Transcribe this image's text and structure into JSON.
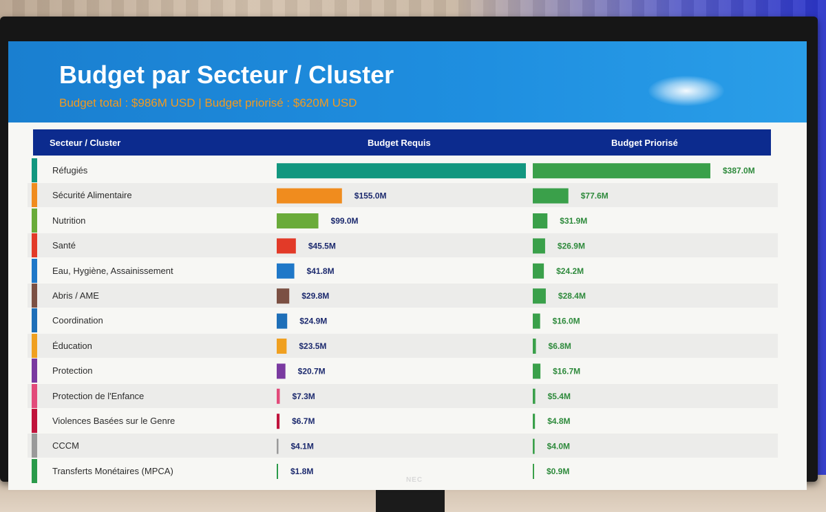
{
  "slide": {
    "title": "Budget par Secteur / Cluster",
    "subtitle": "Budget total : $986M USD  |  Budget priorisé : $620M USD"
  },
  "device": {
    "brand": "NEC"
  },
  "colors": {
    "header_bg": "#0c2b8e",
    "banner_bg": "#1f8fe0",
    "subtitle": "#f39a1e",
    "priorise_bar": "#3aa04a",
    "priorise_label": "#2e8a3c",
    "requis_label": "#1c2a6e"
  },
  "chart_data": {
    "type": "bar",
    "orientation": "horizontal",
    "column_headers": [
      "Secteur / Cluster",
      "Budget Requis",
      "Budget Priorisé"
    ],
    "unit": "M USD",
    "categories": [
      "Réfugiés",
      "Sécurité Alimentaire",
      "Nutrition",
      "Santé",
      "Eau, Hygiène, Assainissement",
      "Abris / AME",
      "Coordination",
      "Éducation",
      "Protection",
      "Protection de l'Enfance",
      "Violences Basées sur le Genre",
      "CCCM",
      "Transferts Monétaires (MPCA)"
    ],
    "category_colors": [
      "#12977f",
      "#f08c1e",
      "#6aab3a",
      "#e23a28",
      "#1f78c8",
      "#7b5043",
      "#1e6fb8",
      "#f0a020",
      "#7a3aa0",
      "#e24a7a",
      "#c0143c",
      "#9a9a9a",
      "#2a9a4a"
    ],
    "series": [
      {
        "name": "Budget Requis",
        "values": [
          592.0,
          155.0,
          99.0,
          45.5,
          41.8,
          29.8,
          24.9,
          23.5,
          20.7,
          7.3,
          6.7,
          4.1,
          1.8
        ],
        "labels": [
          "",
          "$155.0M",
          "$99.0M",
          "$45.5M",
          "$41.8M",
          "$29.8M",
          "$24.9M",
          "$23.5M",
          "$20.7M",
          "$7.3M",
          "$6.7M",
          "$4.1M",
          "$1.8M"
        ]
      },
      {
        "name": "Budget Priorisé",
        "values": [
          387.0,
          77.6,
          31.9,
          26.9,
          24.2,
          28.4,
          16.0,
          6.8,
          16.7,
          5.4,
          4.8,
          4.0,
          0.9
        ],
        "labels": [
          "$387.0M",
          "$77.6M",
          "$31.9M",
          "$26.9M",
          "$24.2M",
          "$28.4M",
          "$16.0M",
          "$6.8M",
          "$16.7M",
          "$5.4M",
          "$4.8M",
          "$4.0M",
          "$0.9M"
        ]
      }
    ]
  }
}
